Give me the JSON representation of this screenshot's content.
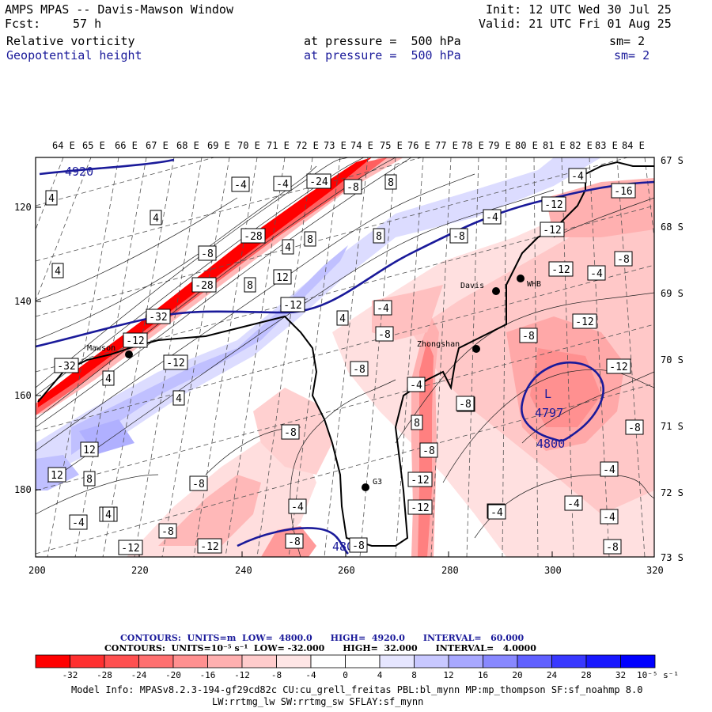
{
  "header": {
    "title": "AMPS MPAS -- Davis-Mawson Window",
    "fcst_label": "Fcst:",
    "fcst_value": "57 h",
    "init": "Init: 12 UTC Wed 30 Jul 25",
    "valid": "Valid: 21 UTC Fri 01 Aug 25",
    "field1": "Relative vorticity",
    "field1_level": "at pressure =  500 hPa",
    "field1_sm": "sm= 2",
    "field2": "Geopotential height",
    "field2_level": "at pressure =  500 hPa",
    "field2_sm": "sm= 2"
  },
  "map": {
    "top_lon_labels": [
      "64 E",
      "65 E",
      "66 E",
      "67 E",
      "68 E",
      "69 E",
      "70 E",
      "71 E",
      "72 E",
      "73 E",
      "74 E",
      "75 E",
      "76 E",
      "77 E",
      "78 E",
      "79 E",
      "80 E",
      "81 E",
      "82 E",
      "83 E",
      "84 E"
    ],
    "right_lat_labels": [
      "67 S",
      "68 S",
      "69 S",
      "70 S",
      "71 S",
      "72 S",
      "73 S"
    ],
    "left_y_labels": [
      "120",
      "140",
      "160",
      "180"
    ],
    "bottom_x_labels": [
      "200",
      "220",
      "240",
      "260",
      "280",
      "300",
      "320"
    ],
    "stations": [
      {
        "name": "Mawson"
      },
      {
        "name": "Davis"
      },
      {
        "name": "WHB"
      },
      {
        "name": "Zhongshan"
      },
      {
        "name": "G3"
      }
    ],
    "height_labels": [
      "4920",
      "4800",
      "4800",
      "L",
      "4797"
    ],
    "vort_labels": [
      "4",
      "4",
      "4",
      "4",
      "-4",
      "-4",
      "-24",
      "-8",
      "8",
      "-28",
      "-8",
      "8",
      "4",
      "8",
      "-28",
      "8",
      "12",
      "-32",
      "-12",
      "-32",
      "-12",
      "4",
      "-12",
      "4",
      "-4",
      "-8",
      "-8",
      "-4",
      "-4",
      "-8",
      "8",
      "-4",
      "-12",
      "-12",
      "-16",
      "-12",
      "-4",
      "-8",
      "-12",
      "-8",
      "-12",
      "12",
      "8",
      "-8",
      "12",
      "-8",
      "-4",
      "-4",
      "-8",
      "-12",
      "-4",
      "-12",
      "-8",
      "-4",
      "4",
      "-8",
      "-4",
      "-4",
      "-4",
      "-8",
      "-8",
      "-4",
      "-12",
      "-8",
      "-12",
      "-4",
      "-8",
      "-4"
    ]
  },
  "colorbar": {
    "contours1": "CONTOURS:  UNITS=m  LOW=  4800.0      HIGH=  4920.0      INTERVAL=   60.000",
    "contours2": "CONTOURS:  UNITS=10⁻⁵ s⁻¹  LOW= -32.000      HIGH=  32.000      INTERVAL=   4.0000",
    "tick_labels": [
      "-32",
      "-28",
      "-24",
      "-20",
      "-16",
      "-12",
      "-8",
      "-4",
      "0",
      "4",
      "8",
      "12",
      "16",
      "20",
      "24",
      "28",
      "32"
    ],
    "units": "10⁻⁵ s⁻¹",
    "colors": [
      "#ff0000",
      "#ff3030",
      "#ff5050",
      "#ff7070",
      "#ff9090",
      "#ffb0b0",
      "#ffcccc",
      "#ffe6e6",
      "#ffffff",
      "#ffffff",
      "#e6e6ff",
      "#c8c8ff",
      "#a8a8ff",
      "#8888ff",
      "#6060ff",
      "#3838ff",
      "#1818ff",
      "#0000ff"
    ]
  },
  "footer": {
    "model_info": "Model Info: MPASv8.2.3-194-gf29cd82c CU:cu_grell_freitas PBL:bl_mynn MP:mp_thompson SF:sf_noahmp 8.0",
    "model_info2": "LW:rrtmg_lw SW:rrtmg_sw SFLAY:sf_mynn"
  }
}
